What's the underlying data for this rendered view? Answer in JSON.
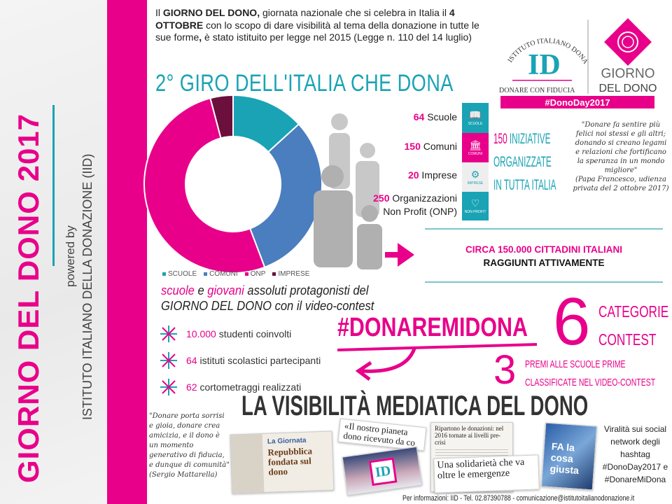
{
  "sidebar": {
    "title": "GIORNO DEL DONO 2017",
    "powered_by": "powered by",
    "organization": "ISTITUTO ITALIANO DELLA DONAZIONE (IID)"
  },
  "intro": {
    "p1": "Il ",
    "b1": "GIORNO DEL DONO,",
    "p2": " giornata nazionale che si celebra in Italia il ",
    "b2": "4 OTTOBRE",
    "p3": " con lo scopo di dare visibilità al tema della donazione in tutte le sue forme",
    "b3": ",",
    "p4": " è stato istituito per legge nel 2015 (Legge n. 110 del 14 luglio)"
  },
  "logo": {
    "arc_text": "ISTITUTO ITALIANO DONAZIONE",
    "monogram": "ID",
    "tagline": "DONARE CON FIDUCIA",
    "brand_line1": "GIORNO",
    "brand_line2": "DEL DONO",
    "hashtag": "#DonoDay2017"
  },
  "giro_title": "2° GIRO DELL'ITALIA CHE DONA",
  "chart_data": {
    "type": "pie",
    "donut": true,
    "categories": [
      "SCUOLE",
      "COMUNI",
      "ONP",
      "IMPRESE"
    ],
    "values": [
      64,
      150,
      250,
      20
    ],
    "colors": [
      "#1aa3b5",
      "#4a7ebf",
      "#e8008a",
      "#6b0f3c"
    ],
    "legend": "bottom"
  },
  "stats": [
    {
      "num": "64",
      "label": "Scuole",
      "icon": "book-icon",
      "tile": "SCUOLE",
      "color": "#1aa3b5"
    },
    {
      "num": "150",
      "label": "Comuni",
      "icon": "town-hall-icon",
      "tile": "COMUNI",
      "color": "#e8008a"
    },
    {
      "num": "20",
      "label": "Imprese",
      "icon": "gears-icon",
      "tile": "IMPRESE",
      "color": "#eeeeee"
    },
    {
      "num": "250",
      "label": "Organizzazioni",
      "label2": "Non Profit (ONP)",
      "icon": "heart-icon",
      "tile": "NON PROFIT",
      "color": "#1aa3b5"
    }
  ],
  "tile_brand": "DONODAY",
  "iniziative": {
    "num": "150",
    "line1": " INIZIATIVE",
    "line2": "ORGANIZZATE",
    "line3": "IN TUTTA ITALIA"
  },
  "papa_quote": {
    "text": "\"Donare fa sentire più felici noi stessi e gli altri; donando si creano legami e relazioni che fortificano la speranza in un mondo migliore\"",
    "source": "(Papa Francesco, udienza privata del 2 ottobre 2017)"
  },
  "citizens": {
    "pre": "CIRCA ",
    "num": "150.000",
    "post": " CITTADINI ITALIANI",
    "line2": "RAGGIUNTI ATTIVAMENTE"
  },
  "scuole_title": {
    "w1": "scuole",
    "w2": " e ",
    "w3": "giovani",
    "w4": " assoluti protagonisti del",
    "line2": "GIORNO DEL DONO",
    "line2b": " con il video-contest"
  },
  "bullets": [
    {
      "num": "10.000",
      "text": " studenti coinvolti"
    },
    {
      "num": "64",
      "text": " istituti scolastici partecipanti"
    },
    {
      "num": "62",
      "text": " cortometraggi realizzati"
    }
  ],
  "contest": {
    "hashtag": "#DONAREMIDONA",
    "categories_num": "6",
    "categories_l1": "CATEGORIE",
    "categories_l2": "CONTEST",
    "prizes_num": "3",
    "prizes_l1": "PREMI ALLE SCUOLE PRIME",
    "prizes_l2": "CLASSIFICATE NEL VIDEO-CONTEST"
  },
  "media_title": "LA VISIBILITÀ MEDIATICA DEL DONO",
  "mattarella_quote": {
    "text": "\"Donare porta sorrisi e gioia, donare crea amicizia, e il dono è un momento generativo di fiducia, e dunque di comunità\"",
    "source": "(Sergio Mattarella)"
  },
  "clippings": {
    "c1_kicker": "La Giornata",
    "c1_head": "Repubblica fondata sul dono",
    "c2_head": "«Il nostro pianeta dono ricevuto da co",
    "c3_head": "Ripartono le donazioni: nel 2016 tornate ai livelli pre-crisi",
    "c4_head": "Una solidarietà che va oltre le emergenze",
    "c5_head": "FA la cosa giusta"
  },
  "virality": "Viralità sui social network degli hashtag #DonoDay2017 e #DonareMiDona",
  "footer": "Per informazioni: IID - Tel. 02.87390788 - comunicazione@istitutoitalianodonazione.it",
  "colors": {
    "pink": "#e8008a",
    "teal": "#1aa3b5",
    "blue": "#4a7ebf",
    "maroon": "#6b0f3c"
  }
}
